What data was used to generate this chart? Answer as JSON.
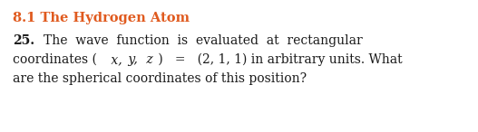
{
  "title": "8.1 The Hydrogen Atom",
  "title_color": "#e05a1e",
  "title_fontsize": 10.5,
  "background_color": "#ffffff",
  "body_color": "#1a1a1a",
  "body_fontsize": 10.0,
  "num_text": "25.",
  "line1_rest": "   The wave function is evaluated at rectangular",
  "line2_pre": "coordinates (",
  "line2_xyz": " x,  y,  z",
  "line2_post": " )   =   (2, 1, 1) in arbitrary units. What",
  "line3": "are the spherical coordinates of this position?"
}
